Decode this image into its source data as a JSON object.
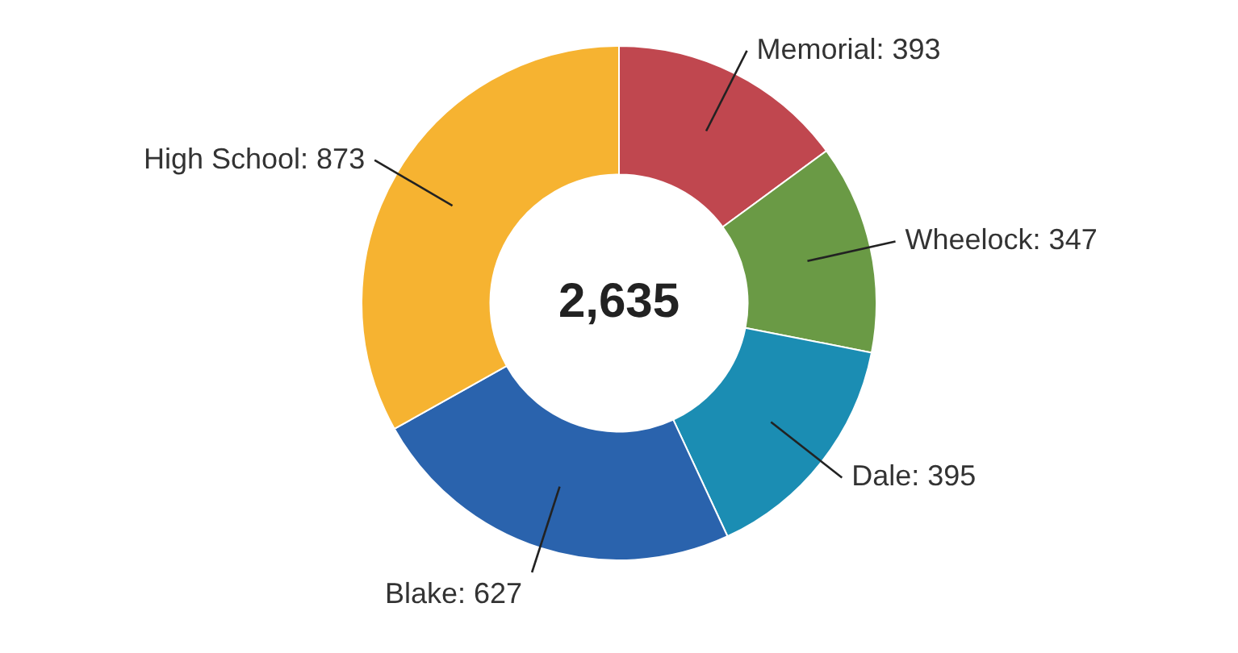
{
  "chart_data": {
    "type": "donut",
    "categories": [
      "Memorial",
      "Wheelock",
      "Dale",
      "Blake",
      "High School"
    ],
    "values": [
      393,
      347,
      395,
      627,
      873
    ],
    "colors": [
      "#c0474f",
      "#6a9a45",
      "#1b8db3",
      "#2a63ad",
      "#f6b331"
    ],
    "value_labels": [
      ": 393",
      ": 347",
      ": 395",
      ": 627",
      ": 873"
    ],
    "legend": false,
    "annotations": [
      "2,635"
    ]
  }
}
